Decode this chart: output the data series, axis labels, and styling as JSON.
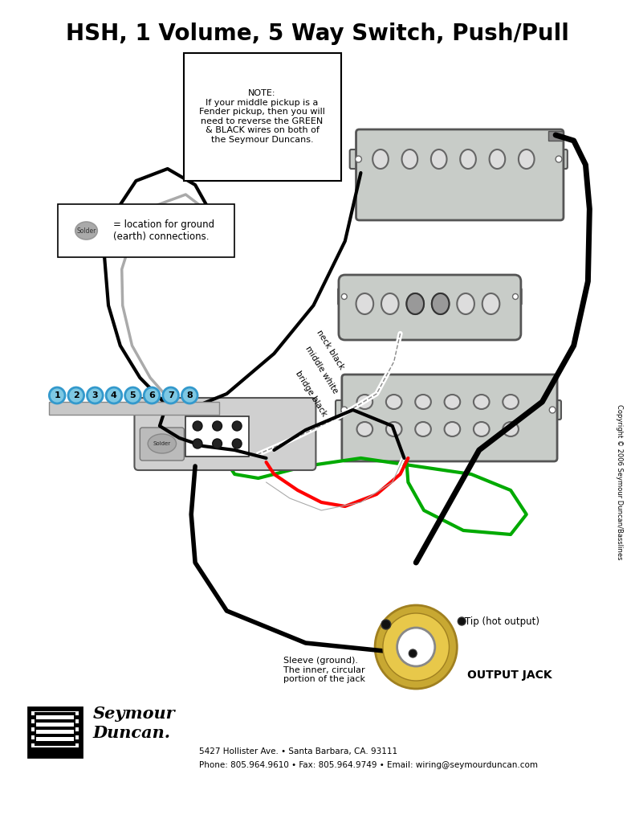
{
  "title": "HSH, 1 Volume, 5 Way Switch, Push/Pull",
  "bg_color": "#ffffff",
  "title_fontsize": 20,
  "note_text": "NOTE:\nIf your middle pickup is a\nFender pickup, then you will\nneed to reverse the GREEN\n& BLACK wires on both of\nthe Seymour Duncans.",
  "solder_label": "= location for ground\n(earth) connections.",
  "footer_line1": "5427 Hollister Ave. • Santa Barbara, CA. 93111",
  "footer_line2": "Phone: 805.964.9610 • Fax: 805.964.9749 • Email: wiring@seymourduncan.com",
  "copyright_text": "Copyright © 2006 Seymour Duncan/Basslines",
  "output_jack_label": "OUTPUT JACK",
  "tip_label": "Tip (hot output)",
  "sleeve_label": "Sleeve (ground).\nThe inner, circular\nportion of the jack",
  "switch_numbers": [
    "1",
    "2",
    "3",
    "4",
    "5",
    "6",
    "7",
    "8"
  ],
  "pickup_color": "#c8ccc8",
  "pickup_edge": "#555555",
  "switch_number_bg": "#7ec8e3",
  "switch_number_border": "#3399cc",
  "jack_gold": "#c8a832",
  "jack_gold_light": "#e8c84a"
}
